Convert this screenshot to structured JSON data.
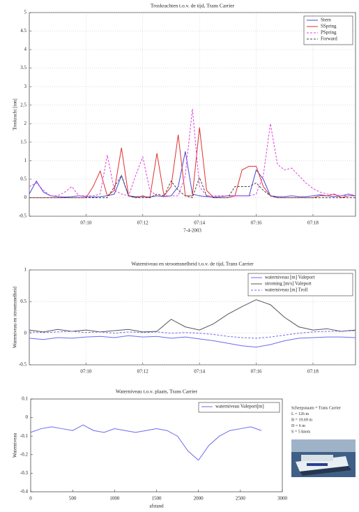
{
  "chart_data": [
    {
      "type": "line",
      "title": "Troskrachten t.o.v. de tijd, Trans Carrier",
      "xlabel": "7-4-2003",
      "ylabel": "Troskracht [ton]",
      "x": [
        428,
        428.25,
        428.5,
        428.75,
        429,
        429.25,
        429.5,
        429.75,
        430,
        430.25,
        430.5,
        430.75,
        431,
        431.25,
        431.5,
        431.75,
        432,
        432.25,
        432.5,
        432.75,
        433,
        433.25,
        433.5,
        433.75,
        434,
        434.25,
        434.5,
        434.75,
        435,
        435.25,
        435.5,
        435.75,
        436,
        436.25,
        436.5,
        436.75,
        437,
        437.25,
        437.5,
        437.75,
        438,
        438.25,
        438.5,
        438.75,
        439,
        439.25,
        439.5
      ],
      "series": [
        {
          "name": "Stern",
          "color": "#4646d8",
          "linestyle": "solid",
          "values": [
            0.1,
            0.45,
            0.15,
            0.05,
            0.03,
            0.02,
            0.03,
            0.05,
            0.03,
            0.02,
            0.03,
            0.05,
            0.1,
            0.6,
            0.05,
            0.03,
            0.03,
            0.02,
            0.05,
            0.03,
            0.05,
            0.3,
            1.25,
            0.1,
            0.05,
            0.03,
            0.02,
            0.03,
            0.05,
            0.05,
            0.05,
            0.05,
            0.75,
            0.5,
            0.05,
            0.03,
            0.03,
            0.05,
            0.03,
            0.03,
            0.05,
            0.08,
            0.05,
            0.03,
            0.05,
            0.1,
            0.05
          ]
        },
        {
          "name": "SSpring",
          "color": "#e03030",
          "linestyle": "solid",
          "values": [
            0,
            0,
            0,
            0,
            0,
            0,
            0,
            0,
            0,
            0.3,
            0.72,
            0.05,
            0.2,
            1.35,
            0.05,
            0,
            0.05,
            0,
            1.2,
            0.05,
            0.3,
            1.7,
            0.05,
            0.05,
            1.9,
            0.2,
            0,
            0,
            0,
            0.05,
            0.75,
            0.85,
            0.85,
            0.3,
            0.05,
            0,
            0,
            0,
            0,
            0,
            0,
            0.05,
            0.05,
            0.1,
            0,
            0.05,
            0.05
          ]
        },
        {
          "name": "PSpring",
          "color": "#e040e0",
          "linestyle": "dashed",
          "values": [
            0.3,
            0.4,
            0.2,
            0.05,
            0.05,
            0.15,
            0.3,
            0.05,
            0.05,
            0.05,
            0.1,
            1.15,
            0.2,
            0.1,
            0.05,
            0.6,
            1.1,
            0.2,
            0.05,
            0.05,
            0.05,
            0.05,
            0.6,
            2.4,
            0.3,
            0.05,
            0.05,
            0.05,
            0.05,
            0.05,
            0.05,
            0.05,
            0.1,
            0.6,
            2.0,
            0.9,
            0.75,
            0.8,
            0.6,
            0.4,
            0.25,
            0.15,
            0.1,
            0.08,
            0.05,
            0.05,
            0.05
          ]
        },
        {
          "name": "Forward",
          "color": "#404040",
          "linestyle": "dashed",
          "values": [
            0,
            0,
            0,
            0,
            0,
            0,
            0,
            0,
            0,
            0,
            0,
            0,
            0.3,
            0.6,
            0.05,
            0,
            0,
            0,
            0.1,
            0.05,
            0.45,
            0.2,
            0.05,
            0,
            0.55,
            0.05,
            0,
            0,
            0,
            0.3,
            0.3,
            0.3,
            0.4,
            0.2,
            0.05,
            0,
            0,
            0,
            0,
            0,
            0,
            0,
            0,
            0,
            0,
            0,
            0
          ]
        }
      ],
      "xlim": [
        428,
        439.5
      ],
      "xticks": [
        {
          "value": 430,
          "label": "07:10"
        },
        {
          "value": 432,
          "label": "07:12"
        },
        {
          "value": 434,
          "label": "07:14"
        },
        {
          "value": 436,
          "label": "07:16"
        },
        {
          "value": 438,
          "label": "07:18"
        }
      ],
      "ylim": [
        -0.5,
        5
      ],
      "yticks": [
        -0.5,
        0,
        0.5,
        1,
        1.5,
        2,
        2.5,
        3,
        3.5,
        4,
        4.5,
        5
      ],
      "grid": true,
      "legend": "upper right"
    },
    {
      "type": "line",
      "title": "Waterniveau en stroomsnelheid t.o.v. de tijd, Trans Carrier",
      "ylabel": "Waterniveau en stroomsnelheid",
      "x": [
        428,
        428.5,
        429,
        429.5,
        430,
        430.5,
        431,
        431.5,
        432,
        432.5,
        433,
        433.5,
        434,
        434.5,
        435,
        435.5,
        436,
        436.5,
        437,
        437.5,
        438,
        438.5,
        439,
        439.5
      ],
      "series": [
        {
          "name": "waterniveau [m] Valeport",
          "color": "#6a6af0",
          "linestyle": "solid",
          "values": [
            -0.08,
            -0.1,
            -0.07,
            -0.08,
            -0.06,
            -0.05,
            -0.07,
            -0.04,
            -0.06,
            -0.05,
            -0.08,
            -0.06,
            -0.09,
            -0.12,
            -0.16,
            -0.2,
            -0.22,
            -0.18,
            -0.12,
            -0.08,
            -0.07,
            -0.06,
            -0.06,
            -0.07
          ]
        },
        {
          "name": "stroming [m/s] Valeport",
          "color": "#555555",
          "linestyle": "solid",
          "values": [
            0.05,
            0.02,
            0.06,
            0.03,
            0.05,
            0.02,
            0.04,
            0.06,
            0.02,
            0.03,
            0.22,
            0.1,
            0.05,
            0.15,
            0.3,
            0.42,
            0.53,
            0.45,
            0.25,
            0.1,
            0.05,
            0.07,
            0.03,
            0.05
          ]
        },
        {
          "name": "waterniveau [m] Troll",
          "color": "#6a6af0",
          "linestyle": "dashed",
          "values": [
            0.02,
            0.01,
            0.02,
            0.03,
            0.01,
            0.02,
            0,
            0.02,
            0.01,
            0.02,
            0,
            0.01,
            0,
            -0.02,
            -0.05,
            -0.07,
            -0.08,
            -0.06,
            -0.03,
            0,
            0.02,
            0.03,
            0.03,
            0.04
          ]
        }
      ],
      "xlim": [
        428,
        439.5
      ],
      "xticks": [
        {
          "value": 430,
          "label": "07:10"
        },
        {
          "value": 432,
          "label": "07:12"
        },
        {
          "value": 434,
          "label": "07:14"
        },
        {
          "value": 436,
          "label": "07:16"
        },
        {
          "value": 438,
          "label": "07:18"
        }
      ],
      "ylim": [
        -0.5,
        1
      ],
      "yticks": [
        -0.5,
        0,
        0.5,
        1
      ],
      "grid": true,
      "legend": "upper right"
    },
    {
      "type": "line",
      "title": "Waterniveau t.o.v. plaats, Trans Carrier",
      "xlabel": "afstand",
      "ylabel": "Waterniveau",
      "x": [
        0,
        125,
        250,
        375,
        500,
        625,
        750,
        875,
        1000,
        1125,
        1250,
        1375,
        1500,
        1625,
        1750,
        1875,
        2000,
        2125,
        2250,
        2375,
        2500,
        2625,
        2750
      ],
      "series": [
        {
          "name": "waterniveau Valeport[m]",
          "color": "#6a6af0",
          "linestyle": "solid",
          "values": [
            -0.08,
            -0.06,
            -0.05,
            -0.06,
            -0.07,
            -0.04,
            -0.07,
            -0.08,
            -0.06,
            -0.07,
            -0.08,
            -0.07,
            -0.06,
            -0.07,
            -0.1,
            -0.18,
            -0.23,
            -0.15,
            -0.1,
            -0.07,
            -0.06,
            -0.05,
            -0.07
          ]
        }
      ],
      "xlim": [
        0,
        3000
      ],
      "xticks": [
        0,
        500,
        1000,
        1500,
        2000,
        2500,
        3000
      ],
      "ylim": [
        -0.4,
        0.1
      ],
      "yticks": [
        -0.4,
        -0.3,
        -0.2,
        -0.1,
        0,
        0.1
      ],
      "grid": false,
      "legend": "upper right",
      "annotations": [
        "Scheepsnaam = Trans Carrier",
        "L = 126 m",
        "B = 19.69 m",
        "D = 6 m",
        "S = 5 knots"
      ]
    }
  ]
}
